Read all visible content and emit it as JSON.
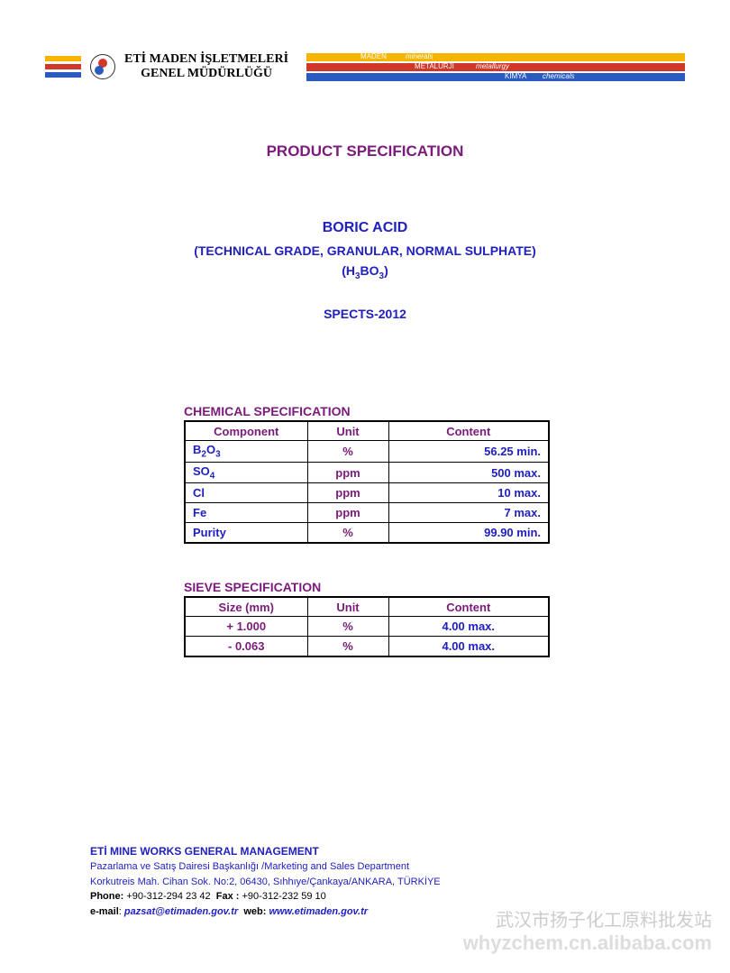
{
  "header": {
    "company_line1": "ETİ MADEN İŞLETMELERİ",
    "company_line2": "GENEL MÜDÜRLÜĞÜ",
    "left_bar_colors": [
      "#f7b500",
      "#d0382a",
      "#2a5bc0"
    ],
    "right_bars": [
      {
        "color": "#f7b500",
        "label_left": "MADEN",
        "label_right": "minerals"
      },
      {
        "color": "#d0382a",
        "label_left": "METALURJİ",
        "label_right": "metallurgy"
      },
      {
        "color": "#2a5bc0",
        "label_left": "KİMYA",
        "label_right": "chemicals"
      }
    ]
  },
  "title": "PRODUCT SPECIFICATION",
  "product": {
    "name": "BORIC ACID",
    "subtitle": "(TECHNICAL GRADE, GRANULAR, NORMAL SULPHATE)",
    "formula_html": "(H₃BO₃)",
    "spec_code": "SPECTS-2012"
  },
  "chemical": {
    "label": "CHEMICAL SPECIFICATION",
    "headers": [
      "Component",
      "Unit",
      "Content"
    ],
    "rows": [
      {
        "component_html": "B₂O₃",
        "unit": "%",
        "content": "56.25 min."
      },
      {
        "component_html": "SO₄",
        "unit": "ppm",
        "content": "500 max."
      },
      {
        "component_html": "Cl",
        "unit": "ppm",
        "content": "10 max."
      },
      {
        "component_html": "Fe",
        "unit": "ppm",
        "content": "7 max."
      },
      {
        "component_html": "Purity",
        "unit": "%",
        "content": "99.90 min."
      }
    ]
  },
  "sieve": {
    "label": "SIEVE SPECIFICATION",
    "headers": [
      "Size (mm)",
      "Unit",
      "Content"
    ],
    "rows": [
      {
        "size": "+ 1.000",
        "unit": "%",
        "content": "4.00 max."
      },
      {
        "size": "- 0.063",
        "unit": "%",
        "content": "4.00 max."
      }
    ]
  },
  "footer": {
    "title": "ETİ MINE WORKS GENERAL MANAGEMENT",
    "dept": "Pazarlama ve Satış Dairesi Başkanlığı /Marketing and Sales Department",
    "address": "Korkutreis Mah. Cihan Sok. No:2, 06430, Sıhhıye/Çankaya/ANKARA, TÜRKİYE",
    "phone_label": "Phone:",
    "phone": "+90-312-294 23 42",
    "fax_label": "Fax :",
    "fax": "+90-312-232 59 10",
    "email_label": "e-mail",
    "email": "pazsat@etimaden.gov.tr",
    "web_label": "web:",
    "web": "www.etimaden.gov.tr"
  },
  "watermark": {
    "cn": "武汉市扬子化工原料批发站",
    "url": "whyzchem.cn.alibaba.com"
  },
  "style": {
    "title_color": "#7b1a7b",
    "value_color": "#2020c0",
    "border_color": "#000000",
    "background": "#ffffff"
  }
}
